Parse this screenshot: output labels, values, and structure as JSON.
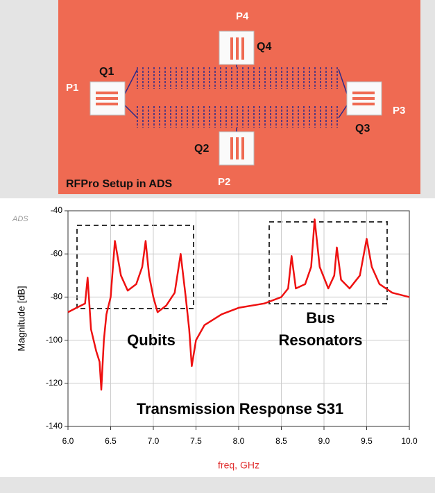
{
  "diagram": {
    "title": "RFPro Setup in ADS",
    "ports": [
      "P1",
      "P2",
      "P3",
      "P4"
    ],
    "qubits": [
      "Q1",
      "Q2",
      "Q3",
      "Q4"
    ]
  },
  "chart_data": {
    "type": "line",
    "logo": "ADS",
    "color": "#ee1111",
    "xlabel": "freq, GHz",
    "ylabel": "Magnitude [dB]",
    "annotations": {
      "qubits": "Qubits",
      "bus": [
        "Bus",
        "Resonators"
      ],
      "caption": "Transmission Response S31"
    },
    "x": [
      6.0,
      6.1,
      6.2,
      6.23,
      6.27,
      6.33,
      6.37,
      6.39,
      6.42,
      6.45,
      6.5,
      6.55,
      6.62,
      6.7,
      6.8,
      6.87,
      6.91,
      6.95,
      7.0,
      7.05,
      7.15,
      7.25,
      7.32,
      7.38,
      7.42,
      7.45,
      7.5,
      7.6,
      7.8,
      8.0,
      8.3,
      8.5,
      8.58,
      8.62,
      8.67,
      8.78,
      8.85,
      8.89,
      8.95,
      9.05,
      9.12,
      9.15,
      9.2,
      9.3,
      9.42,
      9.5,
      9.56,
      9.65,
      9.8,
      10.0
    ],
    "values": [
      -87,
      -85,
      -83,
      -71,
      -95,
      -105,
      -110,
      -123,
      -100,
      -88,
      -80,
      -54,
      -70,
      -77,
      -74,
      -66,
      -54,
      -70,
      -80,
      -87,
      -84,
      -78,
      -60,
      -80,
      -95,
      -112,
      -100,
      -93,
      -88,
      -85,
      -83,
      -80,
      -76,
      -61,
      -76,
      -74,
      -66,
      -44,
      -66,
      -76,
      -70,
      -57,
      -72,
      -76,
      -70,
      -53,
      -66,
      -74,
      -78,
      -80
    ],
    "xlim": [
      6.0,
      10.0
    ],
    "ylim": [
      -140,
      -40
    ],
    "xticks": [
      {
        "value": 6,
        "label": "6.0"
      },
      {
        "value": 6.5,
        "label": "6.5"
      },
      {
        "value": 7,
        "label": "7.0"
      },
      {
        "value": 7.5,
        "label": "7.5"
      },
      {
        "value": 8,
        "label": "8.0"
      },
      {
        "value": 8.5,
        "label": "8.5"
      },
      {
        "value": 9,
        "label": "9.0"
      },
      {
        "value": 9.5,
        "label": "9.5"
      },
      {
        "value": 10,
        "label": "10.0"
      }
    ],
    "yticks": [
      -140,
      -120,
      -100,
      -80,
      -60,
      -40
    ],
    "grid": true
  }
}
